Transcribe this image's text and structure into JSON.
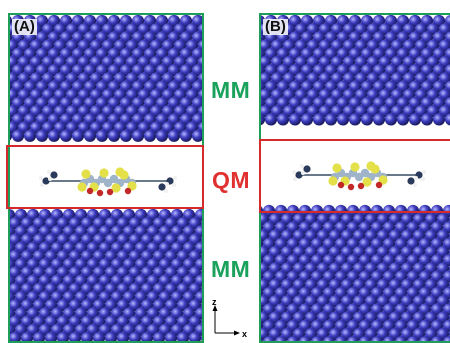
{
  "panels": [
    {
      "id": "a",
      "label": "(A)"
    },
    {
      "id": "b",
      "label": "(B)"
    }
  ],
  "regions": {
    "mm_top": "MM",
    "qm": "QM",
    "mm_bottom": "MM"
  },
  "axes": {
    "vertical": "z",
    "horizontal": "x"
  },
  "colors": {
    "frame": "#1f9e5a",
    "qm_frame": "#d42a2a",
    "mm_text": "#1aa25c",
    "qm_text": "#e0302f",
    "atom": "#3c3cc0",
    "sulfur": "#e3e04a",
    "oxygen": "#c22828",
    "carbon": "#9fb4c8"
  }
}
